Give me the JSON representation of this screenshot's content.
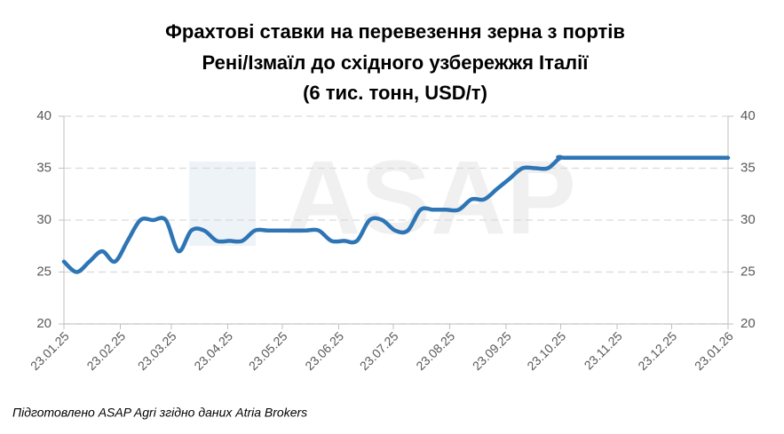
{
  "chart_data": {
    "type": "line",
    "title": [
      "Фрахтові ставки на перевезення зерна з портів",
      "Рені/Ізмаїл до східного узбережжя Італії",
      "(6 тис. тонн, USD/т)"
    ],
    "watermark": "ASAP",
    "source": "Підготовлено ASAP Agri згідно даних Atria Brokers",
    "x": [
      "23.01.25",
      "30.01.25",
      "06.02.25",
      "13.02.25",
      "20.02.25",
      "27.02.25",
      "06.03.25",
      "13.03.25",
      "20.03.25",
      "27.03.25",
      "03.04.25",
      "10.04.25",
      "17.04.25",
      "24.04.25",
      "01.05.25",
      "08.05.25",
      "15.05.25",
      "22.05.25",
      "29.05.25",
      "05.06.25",
      "12.06.25",
      "19.06.25",
      "26.06.25",
      "03.07.25",
      "10.07.25",
      "17.07.25",
      "24.07.25",
      "31.07.25",
      "07.08.25",
      "14.08.25",
      "21.08.25",
      "28.08.25",
      "04.09.25",
      "11.09.25",
      "18.09.25",
      "25.09.25",
      "02.10.25",
      "09.10.25",
      "16.10.25",
      "23.10.25",
      "30.10.25",
      "23.01.26"
    ],
    "series": [
      {
        "name": "Фрахтові ставки",
        "color": "#2e75b6",
        "values": [
          26,
          25,
          26,
          27,
          26,
          28,
          30,
          30,
          30,
          27,
          29,
          29,
          28,
          28,
          28,
          29,
          29,
          29,
          29,
          29,
          29,
          28,
          28,
          28,
          30,
          30,
          29,
          29,
          31,
          31,
          31,
          31,
          32,
          32,
          33,
          34,
          35,
          35,
          35,
          36,
          36,
          36
        ]
      }
    ],
    "xlim": [
      "23.01.25",
      "23.01.26"
    ],
    "xticks": [
      "23.01.25",
      "23.02.25",
      "23.03.25",
      "23.04.25",
      "23.05.25",
      "23.06.25",
      "23.07.25",
      "23.08.25",
      "23.09.25",
      "23.10.25",
      "23.11.25",
      "23.12.25",
      "23.01.26"
    ],
    "ylim": [
      20,
      40
    ],
    "yticks": [
      20,
      25,
      30,
      35,
      40
    ],
    "y2lim": [
      20,
      40
    ],
    "y2ticks": [
      20,
      25,
      30,
      35,
      40
    ],
    "grid": true
  }
}
